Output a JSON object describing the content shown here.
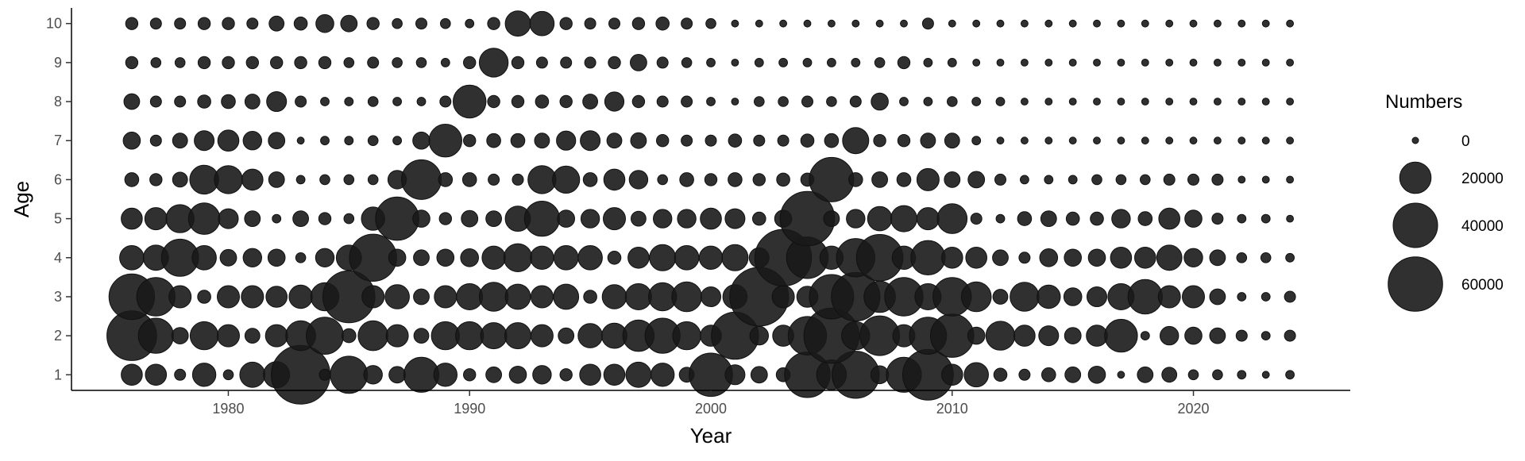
{
  "chart_data": {
    "type": "bubble",
    "xlabel": "Year",
    "ylabel": "Age",
    "xlim": [
      1973.5,
      2026.5
    ],
    "ylim": [
      0.6,
      10.4
    ],
    "x_ticks": [
      1980,
      1990,
      2000,
      2010,
      2020
    ],
    "y_ticks": [
      1,
      2,
      3,
      4,
      5,
      6,
      7,
      8,
      9,
      10
    ],
    "years": [
      1976,
      1977,
      1978,
      1979,
      1980,
      1981,
      1982,
      1983,
      1984,
      1985,
      1986,
      1987,
      1988,
      1989,
      1990,
      1991,
      1992,
      1993,
      1994,
      1995,
      1996,
      1997,
      1998,
      1999,
      2000,
      2001,
      2002,
      2003,
      2004,
      2005,
      2006,
      2007,
      2008,
      2009,
      2010,
      2011,
      2012,
      2013,
      2014,
      2015,
      2016,
      2017,
      2018,
      2019,
      2020,
      2021,
      2022,
      2023,
      2024
    ],
    "ages": [
      1,
      2,
      3,
      4,
      5,
      6,
      7,
      8,
      9,
      10
    ],
    "numbers_by_age": {
      "1": [
        9000,
        9000,
        2500,
        11000,
        2000,
        13000,
        14000,
        70000,
        2500,
        28000,
        7000,
        5500,
        25000,
        11000,
        3000,
        5000,
        6000,
        7000,
        3000,
        9000,
        9000,
        13000,
        11000,
        4500,
        38000,
        8000,
        5500,
        4000,
        42000,
        18000,
        45000,
        6500,
        25000,
        52000,
        9000,
        12000,
        3500,
        2500,
        4000,
        5000,
        6000,
        1000,
        5000,
        4500,
        2000,
        2000,
        1500,
        1000,
        1500
      ],
      "2": [
        50000,
        25000,
        5500,
        16000,
        10000,
        4500,
        10000,
        18000,
        28000,
        4000,
        18000,
        10000,
        4500,
        16000,
        16000,
        14000,
        14000,
        10000,
        5000,
        12000,
        13000,
        20000,
        25000,
        16000,
        9000,
        45000,
        7000,
        9000,
        30000,
        62000,
        16000,
        32000,
        10000,
        28000,
        38000,
        6000,
        17000,
        9000,
        8000,
        5500,
        9000,
        22000,
        1500,
        7000,
        6000,
        5000,
        2500,
        1500,
        2500
      ],
      "3": [
        42000,
        30000,
        10000,
        3500,
        10000,
        10000,
        9000,
        11000,
        16000,
        55000,
        10000,
        12000,
        5000,
        10000,
        14000,
        17000,
        13000,
        10000,
        13000,
        3500,
        12000,
        14000,
        16000,
        18000,
        8000,
        12000,
        70000,
        10000,
        9000,
        40000,
        48000,
        20000,
        30000,
        14000,
        30000,
        18000,
        4500,
        17000,
        11000,
        6500,
        8000,
        14000,
        24000,
        10000,
        10000,
        5000,
        1500,
        1500,
        2500
      ],
      "4": [
        12000,
        13000,
        28000,
        12000,
        5500,
        7000,
        6000,
        2000,
        7000,
        13000,
        45000,
        6000,
        5000,
        6000,
        6500,
        11000,
        16000,
        11000,
        12000,
        12000,
        3500,
        9000,
        14000,
        12000,
        11000,
        14000,
        8000,
        65000,
        35000,
        11000,
        30000,
        44000,
        11000,
        24000,
        9000,
        9000,
        5000,
        2500,
        6500,
        6000,
        6000,
        9000,
        9000,
        13000,
        7000,
        5000,
        2000,
        2000,
        1500
      ],
      "5": [
        9000,
        10000,
        16000,
        20000,
        8000,
        5000,
        1500,
        5000,
        3000,
        2000,
        11000,
        38000,
        6000,
        3000,
        5500,
        5000,
        13000,
        25000,
        6000,
        7000,
        10000,
        4500,
        7000,
        7000,
        9000,
        8000,
        3500,
        6000,
        60000,
        5000,
        7000,
        12000,
        14000,
        10000,
        18000,
        2500,
        1500,
        4000,
        5000,
        3500,
        3500,
        7000,
        4000,
        9000,
        6000,
        2500,
        1500,
        1500,
        1000
      ],
      "6": [
        4000,
        3000,
        4500,
        17000,
        16000,
        9000,
        5000,
        1500,
        2000,
        2000,
        2000,
        7000,
        32000,
        4000,
        4000,
        2500,
        2500,
        16000,
        15000,
        4000,
        9000,
        7000,
        2000,
        4000,
        3000,
        4000,
        3000,
        3500,
        3500,
        40000,
        4000,
        5000,
        4000,
        10000,
        5000,
        5500,
        2500,
        1500,
        1500,
        1500,
        2000,
        2000,
        2000,
        2500,
        2500,
        2500,
        1000,
        1000,
        1000
      ],
      "7": [
        6000,
        2500,
        4500,
        8000,
        9000,
        7000,
        5500,
        1000,
        1500,
        1500,
        2000,
        1500,
        6000,
        22000,
        3000,
        4000,
        4000,
        4500,
        7500,
        8000,
        4500,
        5000,
        3000,
        2500,
        2500,
        3500,
        2500,
        2500,
        3500,
        4000,
        14000,
        3000,
        3000,
        4500,
        4500,
        1500,
        1000,
        1000,
        1000,
        1000,
        1000,
        1000,
        1000,
        1000,
        1000,
        1000,
        1000,
        1000,
        1000
      ],
      "8": [
        5000,
        2500,
        2500,
        3500,
        4000,
        4500,
        8000,
        2500,
        1500,
        1500,
        2000,
        1500,
        1500,
        2500,
        22000,
        3000,
        3000,
        3500,
        3000,
        4500,
        7500,
        3000,
        2500,
        2500,
        1500,
        1000,
        2000,
        2000,
        2500,
        2000,
        2500,
        6000,
        1500,
        1500,
        2000,
        1500,
        1500,
        1000,
        1000,
        1000,
        1000,
        1000,
        1000,
        1000,
        1000,
        1000,
        1000,
        1000,
        1000
      ],
      "9": [
        3000,
        2000,
        2000,
        3000,
        3000,
        3000,
        3000,
        3000,
        3000,
        2000,
        2500,
        2000,
        2000,
        1500,
        3000,
        17000,
        3000,
        2500,
        2500,
        2500,
        3000,
        5500,
        2500,
        2000,
        1500,
        1000,
        1500,
        1500,
        1500,
        1500,
        1500,
        2000,
        3000,
        1500,
        1500,
        1000,
        1000,
        1000,
        1000,
        1000,
        1000,
        1000,
        1000,
        1000,
        1000,
        1000,
        1000,
        1000,
        1000
      ],
      "10": [
        3000,
        2500,
        2500,
        3000,
        3000,
        2500,
        4500,
        3500,
        6500,
        5500,
        3000,
        2000,
        2500,
        2000,
        1500,
        3000,
        13000,
        12000,
        3000,
        2500,
        2500,
        3000,
        3500,
        2500,
        2000,
        1000,
        1000,
        1000,
        1000,
        1000,
        1000,
        1000,
        1000,
        2500,
        1000,
        1000,
        1000,
        1000,
        1000,
        1000,
        1000,
        1000,
        1000,
        1000,
        1000,
        1000,
        1000,
        1000,
        1000
      ]
    },
    "legend": {
      "title": "Numbers",
      "placement": "right",
      "entries": [
        {
          "label": "0",
          "value": 0
        },
        {
          "label": "20000",
          "value": 20000
        },
        {
          "label": "40000",
          "value": 40000
        },
        {
          "label": "60000",
          "value": 60000
        }
      ]
    },
    "grid": false,
    "bubble_color": "#1a1a1a"
  }
}
